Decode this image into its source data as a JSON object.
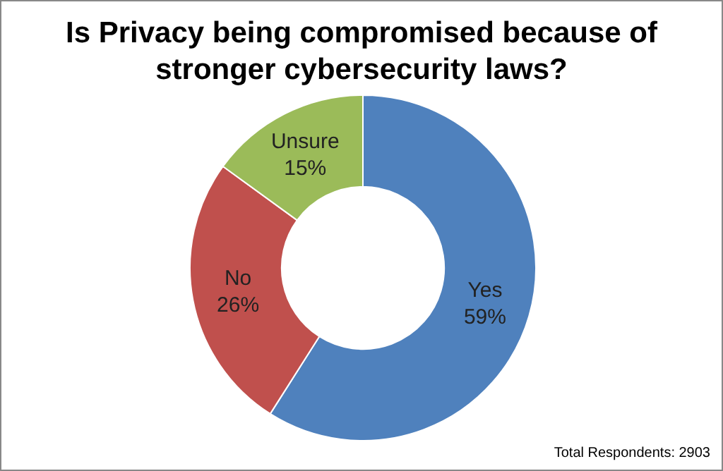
{
  "chart_data": {
    "type": "donut",
    "title": "Is Privacy being compromised because of stronger cybersecurity laws?",
    "categories": [
      "Yes",
      "No",
      "Unsure"
    ],
    "values": [
      59,
      26,
      15
    ],
    "colors": [
      "#4f81bd",
      "#c0504d",
      "#9bbb59"
    ],
    "value_labels": [
      "59%",
      "26%",
      "15%"
    ],
    "legend": false,
    "annotations": [
      "Total Respondents: 2903"
    ]
  }
}
